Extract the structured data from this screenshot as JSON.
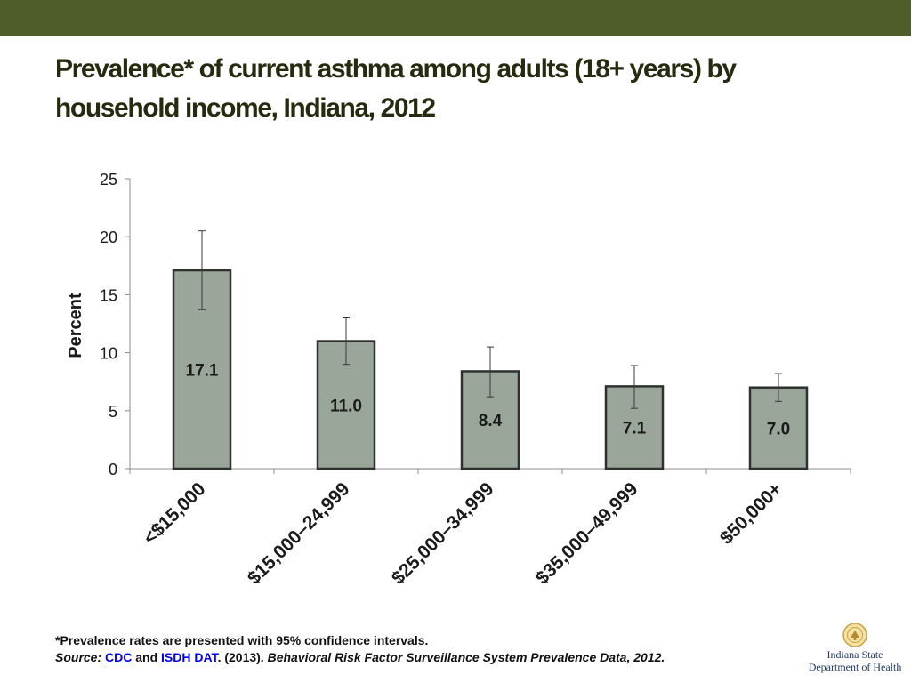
{
  "header": {
    "title_line1": "Prevalence* of current asthma among adults (18+ years) by",
    "title_line2": "household income, Indiana, 2012",
    "bar_color": "#4e5d29"
  },
  "chart_data": {
    "type": "bar",
    "categories": [
      "<$15,000",
      "$15,000–24,999",
      "$25,000–34,999",
      "$35,000–49,999",
      "$50,000+"
    ],
    "values": [
      17.1,
      11.0,
      8.4,
      7.1,
      7.0
    ],
    "value_labels": [
      "17.1",
      "11.0",
      "8.4",
      "7.1",
      "7.0"
    ],
    "ci_lower": [
      13.7,
      9.0,
      6.2,
      5.2,
      5.8
    ],
    "ci_upper": [
      20.5,
      13.0,
      10.5,
      8.9,
      8.2
    ],
    "ylabel": "Percent",
    "ylim": [
      0,
      25
    ],
    "yticks": [
      "0",
      "5",
      "10",
      "15",
      "20",
      "25"
    ],
    "grid": false,
    "bar_color": "#9aa69a",
    "bar_edge_color": "#2e312e"
  },
  "footnote": {
    "line1": "*Prevalence rates are presented with 95% confidence intervals.",
    "source_label": "Source:",
    "link1": "CDC",
    "and_text": "and",
    "link2": "ISDH DAT",
    "year_text": ". (2013).",
    "publication": "Behavioral Risk Factor Surveillance System Prevalence Data, 2012."
  },
  "logo": {
    "line1": "Indiana State",
    "line2": "Department of Health",
    "icon": "state-seal-icon"
  }
}
